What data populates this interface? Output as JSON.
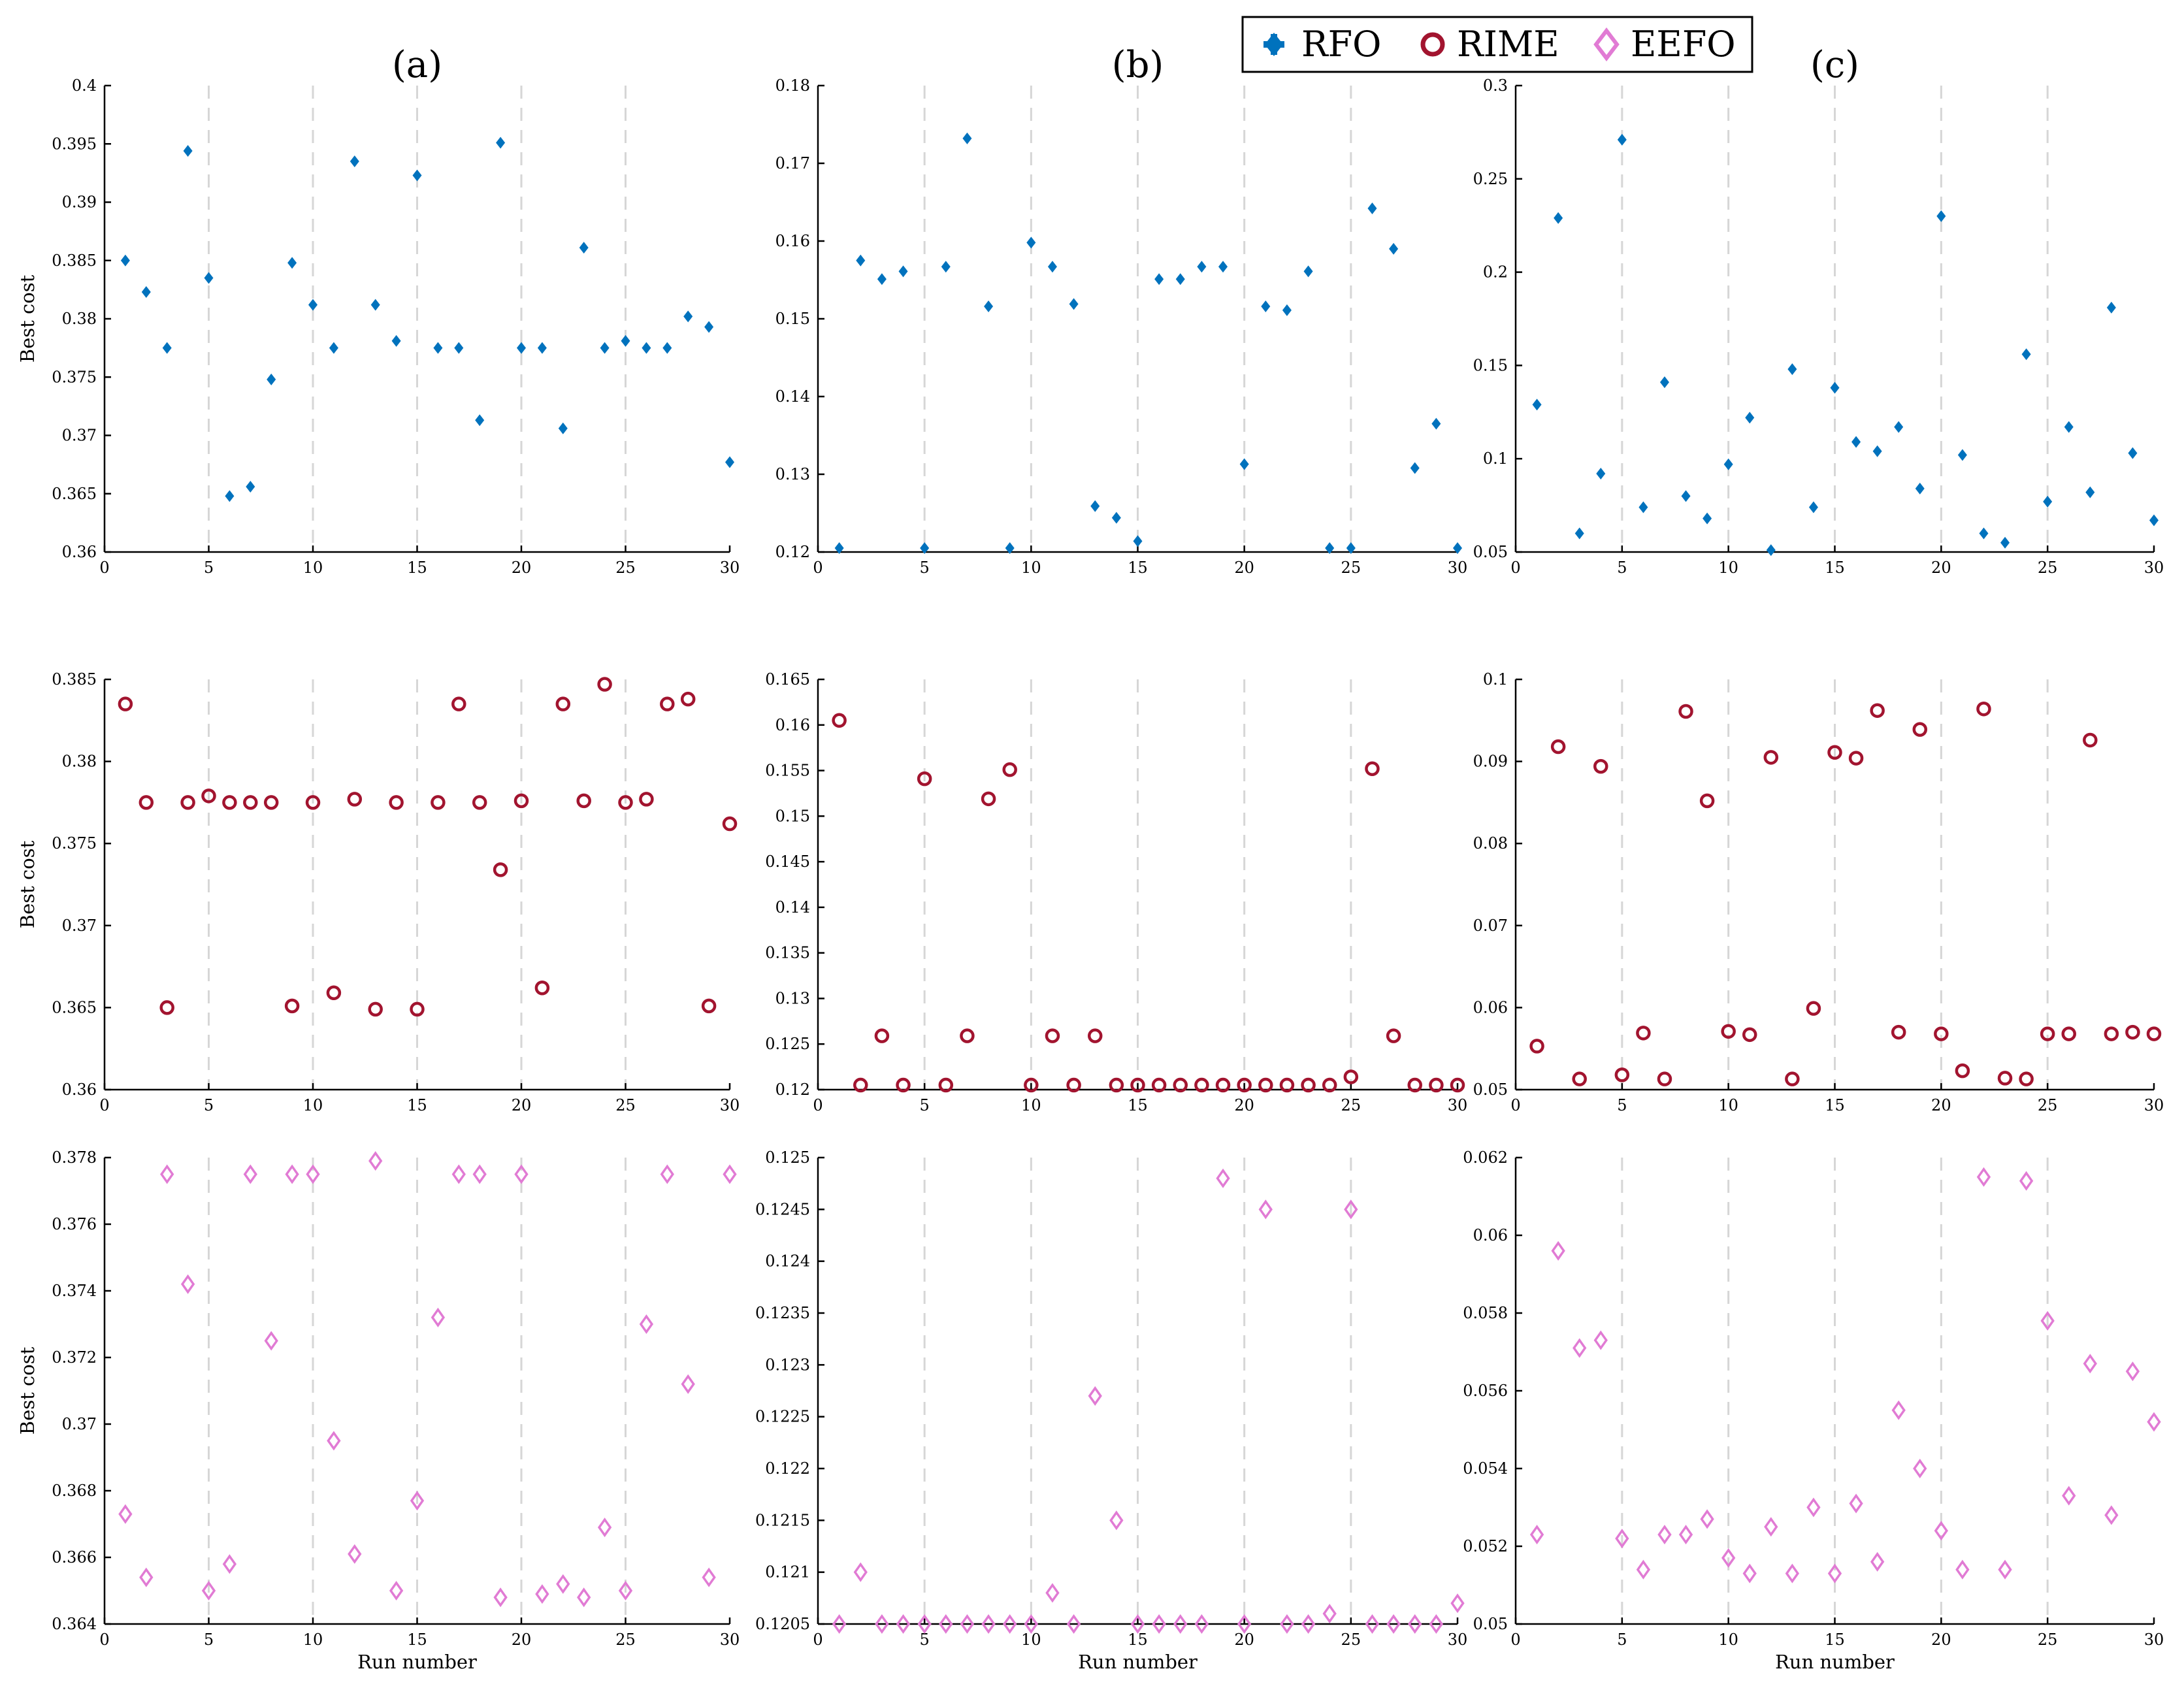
{
  "legend": {
    "entries": [
      {
        "name": "RFO",
        "marker": "plus-diamond",
        "color": "#0072BD"
      },
      {
        "name": "RIME",
        "marker": "circle",
        "color": "#A2142F"
      },
      {
        "name": "EEFO",
        "marker": "diamond",
        "color": "#E17BD4"
      }
    ]
  },
  "panel_titles": [
    "(a)",
    "(b)",
    "(c)"
  ],
  "chart_data": [
    {
      "type": "scatter",
      "row": 0,
      "col": 0,
      "series": "RFO",
      "color": "#0072BD",
      "marker": "filled-diamond",
      "title": "(a)",
      "xlabel": "",
      "ylabel": "Best cost",
      "xlim": [
        0,
        30
      ],
      "ylim": [
        0.36,
        0.4
      ],
      "xticks": [
        0,
        5,
        10,
        15,
        20,
        25,
        30
      ],
      "xtick_labels": [
        "0",
        "5",
        "10",
        "15",
        "20",
        "25",
        "30"
      ],
      "yticks": [
        0.36,
        0.365,
        0.37,
        0.375,
        0.38,
        0.385,
        0.39,
        0.395,
        0.4
      ],
      "ytick_labels": [
        "0.36",
        "0.365",
        "0.37",
        "0.375",
        "0.38",
        "0.385",
        "0.39",
        "0.395",
        "0.4"
      ],
      "vgrid": [
        5,
        10,
        15,
        20,
        25
      ],
      "x": [
        1,
        2,
        3,
        4,
        5,
        6,
        7,
        8,
        9,
        10,
        11,
        12,
        13,
        14,
        15,
        16,
        17,
        18,
        19,
        20,
        21,
        22,
        23,
        24,
        25,
        26,
        27,
        28,
        29,
        30
      ],
      "y": [
        0.385,
        0.3823,
        0.3775,
        0.3944,
        0.3835,
        0.3648,
        0.3656,
        0.3748,
        0.3848,
        0.3812,
        0.3775,
        0.3935,
        0.3812,
        0.3781,
        0.3923,
        0.3775,
        0.3775,
        0.3713,
        0.3951,
        0.3775,
        0.3775,
        0.3706,
        0.3861,
        0.3775,
        0.3781,
        0.3775,
        0.3775,
        0.3802,
        0.3793,
        0.3677
      ]
    },
    {
      "type": "scatter",
      "row": 0,
      "col": 1,
      "series": "RFO",
      "color": "#0072BD",
      "marker": "filled-diamond",
      "title": "(b)",
      "xlabel": "",
      "ylabel": "",
      "xlim": [
        0,
        30
      ],
      "ylim": [
        0.12,
        0.18
      ],
      "xticks": [
        0,
        5,
        10,
        15,
        20,
        25,
        30
      ],
      "xtick_labels": [
        "0",
        "5",
        "10",
        "15",
        "20",
        "25",
        "30"
      ],
      "yticks": [
        0.12,
        0.13,
        0.14,
        0.15,
        0.16,
        0.17,
        0.18
      ],
      "ytick_labels": [
        "0.12",
        "0.13",
        "0.14",
        "0.15",
        "0.16",
        "0.17",
        "0.18"
      ],
      "vgrid": [
        5,
        10,
        15,
        20,
        25
      ],
      "x": [
        1,
        2,
        3,
        4,
        5,
        6,
        7,
        8,
        9,
        10,
        11,
        12,
        13,
        14,
        15,
        16,
        17,
        18,
        19,
        20,
        21,
        22,
        23,
        24,
        25,
        26,
        27,
        28,
        29,
        30
      ],
      "y": [
        0.1205,
        0.1575,
        0.1551,
        0.1561,
        0.1205,
        0.1567,
        0.1732,
        0.1516,
        0.1205,
        0.1598,
        0.1567,
        0.1519,
        0.1259,
        0.1244,
        0.1214,
        0.1551,
        0.1551,
        0.1567,
        0.1567,
        0.1313,
        0.1516,
        0.1511,
        0.1561,
        0.1205,
        0.1205,
        0.1642,
        0.159,
        0.1308,
        0.1365,
        0.1205
      ]
    },
    {
      "type": "scatter",
      "row": 0,
      "col": 2,
      "series": "RFO",
      "color": "#0072BD",
      "marker": "filled-diamond",
      "title": "(c)",
      "xlabel": "",
      "ylabel": "",
      "xlim": [
        0,
        30
      ],
      "ylim": [
        0.05,
        0.3
      ],
      "xticks": [
        0,
        5,
        10,
        15,
        20,
        25,
        30
      ],
      "xtick_labels": [
        "0",
        "5",
        "10",
        "15",
        "20",
        "25",
        "30"
      ],
      "yticks": [
        0.05,
        0.1,
        0.15,
        0.2,
        0.25,
        0.3
      ],
      "ytick_labels": [
        "0.05",
        "0.1",
        "0.15",
        "0.2",
        "0.25",
        "0.3"
      ],
      "vgrid": [
        5,
        10,
        15,
        20,
        25
      ],
      "x": [
        1,
        2,
        3,
        4,
        5,
        6,
        7,
        8,
        9,
        10,
        11,
        12,
        13,
        14,
        15,
        16,
        17,
        18,
        19,
        20,
        21,
        22,
        23,
        24,
        25,
        26,
        27,
        28,
        29,
        30
      ],
      "y": [
        0.129,
        0.229,
        0.06,
        0.092,
        0.271,
        0.074,
        0.141,
        0.08,
        0.068,
        0.097,
        0.122,
        0.051,
        0.148,
        0.074,
        0.138,
        0.109,
        0.104,
        0.117,
        0.084,
        0.23,
        0.102,
        0.06,
        0.055,
        0.156,
        0.077,
        0.117,
        0.082,
        0.181,
        0.103,
        0.067
      ]
    },
    {
      "type": "scatter",
      "row": 1,
      "col": 0,
      "series": "RIME",
      "color": "#A2142F",
      "marker": "open-circle",
      "xlabel": "",
      "ylabel": "Best cost",
      "xlim": [
        0,
        30
      ],
      "ylim": [
        0.36,
        0.385
      ],
      "xticks": [
        0,
        5,
        10,
        15,
        20,
        25,
        30
      ],
      "xtick_labels": [
        "0",
        "5",
        "10",
        "15",
        "20",
        "25",
        "30"
      ],
      "yticks": [
        0.36,
        0.365,
        0.37,
        0.375,
        0.38,
        0.385
      ],
      "ytick_labels": [
        "0.36",
        "0.365",
        "0.37",
        "0.375",
        "0.38",
        "0.385"
      ],
      "vgrid": [
        5,
        10,
        15,
        20,
        25
      ],
      "x": [
        1,
        2,
        3,
        4,
        5,
        6,
        7,
        8,
        9,
        10,
        11,
        12,
        13,
        14,
        15,
        16,
        17,
        18,
        19,
        20,
        21,
        22,
        23,
        24,
        25,
        26,
        27,
        28,
        29,
        30
      ],
      "y": [
        0.3835,
        0.3775,
        0.365,
        0.3775,
        0.3779,
        0.3775,
        0.3775,
        0.3775,
        0.3651,
        0.3775,
        0.3659,
        0.3777,
        0.3649,
        0.3775,
        0.3649,
        0.3775,
        0.3835,
        0.3775,
        0.3734,
        0.3776,
        0.3662,
        0.3835,
        0.3776,
        0.3847,
        0.3775,
        0.3777,
        0.3835,
        0.3838,
        0.3651,
        0.3762
      ]
    },
    {
      "type": "scatter",
      "row": 1,
      "col": 1,
      "series": "RIME",
      "color": "#A2142F",
      "marker": "open-circle",
      "xlabel": "",
      "ylabel": "",
      "xlim": [
        0,
        30
      ],
      "ylim": [
        0.12,
        0.165
      ],
      "xticks": [
        0,
        5,
        10,
        15,
        20,
        25,
        30
      ],
      "xtick_labels": [
        "0",
        "5",
        "10",
        "15",
        "20",
        "25",
        "30"
      ],
      "yticks": [
        0.12,
        0.125,
        0.13,
        0.135,
        0.14,
        0.145,
        0.15,
        0.155,
        0.16,
        0.165
      ],
      "ytick_labels": [
        "0.12",
        "0.125",
        "0.13",
        "0.135",
        "0.14",
        "0.145",
        "0.15",
        "0.155",
        "0.16",
        "0.165"
      ],
      "vgrid": [
        5,
        10,
        15,
        20,
        25
      ],
      "x": [
        1,
        2,
        3,
        4,
        5,
        6,
        7,
        8,
        9,
        10,
        11,
        12,
        13,
        14,
        15,
        16,
        17,
        18,
        19,
        20,
        21,
        22,
        23,
        24,
        25,
        26,
        27,
        28,
        29,
        30
      ],
      "y": [
        0.1605,
        0.1205,
        0.1259,
        0.1205,
        0.1541,
        0.1205,
        0.1259,
        0.1519,
        0.1551,
        0.1205,
        0.1259,
        0.1205,
        0.1259,
        0.1205,
        0.1205,
        0.1205,
        0.1205,
        0.1205,
        0.1205,
        0.1205,
        0.1205,
        0.1205,
        0.1205,
        0.1205,
        0.1214,
        0.1552,
        0.1259,
        0.1205,
        0.1205,
        0.1205
      ]
    },
    {
      "type": "scatter",
      "row": 1,
      "col": 2,
      "series": "RIME",
      "color": "#A2142F",
      "marker": "open-circle",
      "xlabel": "",
      "ylabel": "",
      "xlim": [
        0,
        30
      ],
      "ylim": [
        0.05,
        0.1
      ],
      "xticks": [
        0,
        5,
        10,
        15,
        20,
        25,
        30
      ],
      "xtick_labels": [
        "0",
        "5",
        "10",
        "15",
        "20",
        "25",
        "30"
      ],
      "yticks": [
        0.05,
        0.06,
        0.07,
        0.08,
        0.09,
        0.1
      ],
      "ytick_labels": [
        "0.05",
        "0.06",
        "0.07",
        "0.08",
        "0.09",
        "0.1"
      ],
      "vgrid": [
        5,
        10,
        15,
        20,
        25
      ],
      "x": [
        1,
        2,
        3,
        4,
        5,
        6,
        7,
        8,
        9,
        10,
        11,
        12,
        13,
        14,
        15,
        16,
        17,
        18,
        19,
        20,
        21,
        22,
        23,
        24,
        25,
        26,
        27,
        28,
        29,
        30
      ],
      "y": [
        0.0553,
        0.0918,
        0.0513,
        0.0894,
        0.0518,
        0.0569,
        0.0513,
        0.0961,
        0.0852,
        0.0571,
        0.0567,
        0.0905,
        0.0513,
        0.0599,
        0.0911,
        0.0904,
        0.0962,
        0.057,
        0.0939,
        0.0568,
        0.0523,
        0.0964,
        0.0514,
        0.0513,
        0.0568,
        0.0568,
        0.0926,
        0.0568,
        0.057,
        0.0568
      ]
    },
    {
      "type": "scatter",
      "row": 2,
      "col": 0,
      "series": "EEFO",
      "color": "#E17BD4",
      "marker": "open-diamond",
      "xlabel": "Run number",
      "ylabel": "Best cost",
      "xlim": [
        0,
        30
      ],
      "ylim": [
        0.364,
        0.378
      ],
      "xticks": [
        0,
        5,
        10,
        15,
        20,
        25,
        30
      ],
      "xtick_labels": [
        "0",
        "5",
        "10",
        "15",
        "20",
        "25",
        "30"
      ],
      "yticks": [
        0.364,
        0.366,
        0.368,
        0.37,
        0.372,
        0.374,
        0.376,
        0.378
      ],
      "ytick_labels": [
        "0.364",
        "0.366",
        "0.368",
        "0.37",
        "0.372",
        "0.374",
        "0.376",
        "0.378"
      ],
      "vgrid": [
        5,
        10,
        15,
        20,
        25
      ],
      "x": [
        1,
        2,
        3,
        4,
        5,
        6,
        7,
        8,
        9,
        10,
        11,
        12,
        13,
        14,
        15,
        16,
        17,
        18,
        19,
        20,
        21,
        22,
        23,
        24,
        25,
        26,
        27,
        28,
        29,
        30
      ],
      "y": [
        0.3673,
        0.3654,
        0.3775,
        0.3742,
        0.365,
        0.3658,
        0.3775,
        0.3725,
        0.3775,
        0.3775,
        0.3695,
        0.3661,
        0.3779,
        0.365,
        0.3677,
        0.3732,
        0.3775,
        0.3775,
        0.3648,
        0.3775,
        0.3649,
        0.3652,
        0.3648,
        0.3669,
        0.365,
        0.373,
        0.3775,
        0.3712,
        0.3654,
        0.3775
      ]
    },
    {
      "type": "scatter",
      "row": 2,
      "col": 1,
      "series": "EEFO",
      "color": "#E17BD4",
      "marker": "open-diamond",
      "xlabel": "Run number",
      "ylabel": "",
      "xlim": [
        0,
        30
      ],
      "ylim": [
        0.1205,
        0.125
      ],
      "xticks": [
        0,
        5,
        10,
        15,
        20,
        25,
        30
      ],
      "xtick_labels": [
        "0",
        "5",
        "10",
        "15",
        "20",
        "25",
        "30"
      ],
      "yticks": [
        0.1205,
        0.121,
        0.1215,
        0.122,
        0.1225,
        0.123,
        0.1235,
        0.124,
        0.1245,
        0.125
      ],
      "ytick_labels": [
        "0.1205",
        "0.121",
        "0.1215",
        "0.122",
        "0.1225",
        "0.123",
        "0.1235",
        "0.124",
        "0.1245",
        "0.125"
      ],
      "vgrid": [
        5,
        10,
        15,
        20,
        25
      ],
      "x": [
        1,
        2,
        3,
        4,
        5,
        6,
        7,
        8,
        9,
        10,
        11,
        12,
        13,
        14,
        15,
        16,
        17,
        18,
        19,
        20,
        21,
        22,
        23,
        24,
        25,
        26,
        27,
        28,
        29,
        30
      ],
      "y": [
        0.1205,
        0.121,
        0.1205,
        0.1205,
        0.1205,
        0.1205,
        0.1205,
        0.1205,
        0.1205,
        0.1205,
        0.1208,
        0.1205,
        0.1227,
        0.1215,
        0.1205,
        0.1205,
        0.1205,
        0.1205,
        0.1248,
        0.1205,
        0.1245,
        0.1205,
        0.1205,
        0.1206,
        0.1245,
        0.1205,
        0.1205,
        0.1205,
        0.1205,
        0.1207
      ]
    },
    {
      "type": "scatter",
      "row": 2,
      "col": 2,
      "series": "EEFO",
      "color": "#E17BD4",
      "marker": "open-diamond",
      "xlabel": "Run number",
      "ylabel": "",
      "xlim": [
        0,
        30
      ],
      "ylim": [
        0.05,
        0.062
      ],
      "xticks": [
        0,
        5,
        10,
        15,
        20,
        25,
        30
      ],
      "xtick_labels": [
        "0",
        "5",
        "10",
        "15",
        "20",
        "25",
        "30"
      ],
      "yticks": [
        0.05,
        0.052,
        0.054,
        0.056,
        0.058,
        0.06,
        0.062
      ],
      "ytick_labels": [
        "0.05",
        "0.052",
        "0.054",
        "0.056",
        "0.058",
        "0.06",
        "0.062"
      ],
      "vgrid": [
        5,
        10,
        15,
        20,
        25
      ],
      "x": [
        1,
        2,
        3,
        4,
        5,
        6,
        7,
        8,
        9,
        10,
        11,
        12,
        13,
        14,
        15,
        16,
        17,
        18,
        19,
        20,
        21,
        22,
        23,
        24,
        25,
        26,
        27,
        28,
        29,
        30
      ],
      "y": [
        0.0523,
        0.0596,
        0.0571,
        0.0573,
        0.0522,
        0.0514,
        0.0523,
        0.0523,
        0.0527,
        0.0517,
        0.0513,
        0.0525,
        0.0513,
        0.053,
        0.0513,
        0.0531,
        0.0516,
        0.0555,
        0.054,
        0.0524,
        0.0514,
        0.0615,
        0.0514,
        0.0614,
        0.0578,
        0.0533,
        0.0567,
        0.0528,
        0.0565,
        0.0552
      ]
    }
  ]
}
